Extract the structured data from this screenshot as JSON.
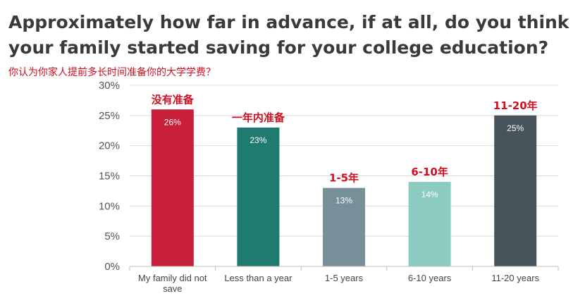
{
  "title": "Approximately how far in advance, if at all, do you think your family started saving for your college education?",
  "subtitle": "你认为你家人提前多长时间准备你的大学学费？",
  "chart_data": {
    "type": "bar",
    "categories": [
      [
        "My family did not",
        "save"
      ],
      [
        "Less than a year"
      ],
      [
        "1-5 years"
      ],
      [
        "6-10 years"
      ],
      [
        "11-20 years"
      ]
    ],
    "values": [
      26,
      23,
      13,
      14,
      25
    ],
    "value_labels": [
      "26%",
      "23%",
      "13%",
      "14%",
      "25%"
    ],
    "annotations": [
      "没有准备",
      "一年内准备",
      "1-5年",
      "6-10年",
      "11-20年"
    ],
    "colors": [
      "#c8203a",
      "#1f7a70",
      "#768f99",
      "#8ccbc0",
      "#46535a"
    ],
    "ylim": [
      0,
      30
    ],
    "yticks": [
      0,
      5,
      10,
      15,
      20,
      25,
      30
    ],
    "ytick_labels": [
      "0%",
      "5%",
      "10%",
      "15%",
      "20%",
      "25%",
      "30%"
    ],
    "grid": true,
    "xlabel": "",
    "ylabel": ""
  }
}
